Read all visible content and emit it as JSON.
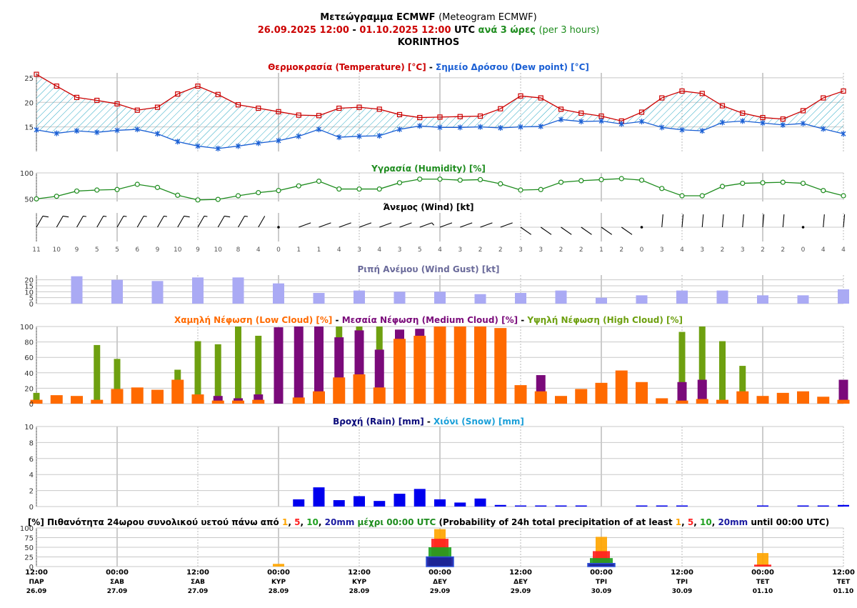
{
  "header": {
    "title_bold": "Μετεώγραμμα ECMWF",
    "title_plain": "(Meteogram ECMWF)",
    "period_start": "26.09.2025 12:00",
    "period_dash": "-",
    "period_end": "01.10.2025 12:00",
    "period_utc": "UTC",
    "period_step": "ανά 3 ώρες",
    "period_step_en": "(per 3 hours)",
    "location": "KORINTHOS"
  },
  "colors": {
    "temperature": "#cc0000",
    "dewpoint": "#1a5fd4",
    "humidity": "#1e8c1e",
    "gust": "#aaaaf4",
    "low_cloud": "#ff6a00",
    "medium_cloud": "#7a0a7a",
    "high_cloud": "#6ea010",
    "rain": "#0000ee",
    "snow": "#1a9fd8",
    "prob_1": "#ffa500",
    "prob_5": "#ff2020",
    "prob_10": "#20a020",
    "prob_20": "#1a1aa0"
  },
  "x_axis": {
    "times": [
      "12:00",
      "00:00",
      "12:00",
      "00:00",
      "12:00",
      "00:00",
      "12:00",
      "00:00",
      "12:00",
      "00:00",
      "12:00"
    ],
    "days": [
      "ΠΑΡ",
      "ΣΑΒ",
      "ΣΑΒ",
      "ΚΥΡ",
      "ΚΥΡ",
      "ΔΕΥ",
      "ΔΕΥ",
      "ΤΡΙ",
      "ΤΡΙ",
      "ΤΕΤ",
      "ΤΕΤ"
    ],
    "dates": [
      "26.09",
      "27.09",
      "27.09",
      "28.09",
      "28.09",
      "29.09",
      "29.09",
      "30.09",
      "30.09",
      "01.10",
      "01.10"
    ]
  },
  "chart_data": [
    {
      "type": "line",
      "title_parts": [
        "Θερμοκρασία (Temperature) [°C]",
        " - ",
        "Σημείο Δρόσου (Dew point) [°C]"
      ],
      "x_steps": 41,
      "ylim": [
        10,
        26
      ],
      "yticks": [
        15,
        20,
        25
      ],
      "series": [
        {
          "name": "Θερμοκρασία (Temperature) [°C]",
          "values": [
            25.7,
            23.3,
            21.0,
            20.4,
            19.7,
            18.4,
            19.0,
            21.7,
            23.3,
            21.6,
            19.5,
            18.8,
            18.1,
            17.4,
            17.3,
            18.8,
            19.0,
            18.6,
            17.5,
            16.9,
            17.0,
            17.1,
            17.2,
            18.7,
            21.3,
            20.9,
            18.6,
            17.8,
            17.2,
            16.2,
            18.0,
            20.9,
            22.3,
            21.8,
            19.3,
            17.8,
            16.9,
            16.6,
            18.3,
            20.9,
            22.3
          ]
        },
        {
          "name": "Σημείο Δρόσου (Dew point) [°C]",
          "values": [
            14.4,
            13.7,
            14.2,
            13.9,
            14.3,
            14.5,
            13.6,
            12.0,
            11.1,
            10.6,
            11.1,
            11.7,
            12.2,
            13.1,
            14.5,
            12.9,
            13.1,
            13.2,
            14.5,
            15.2,
            14.9,
            14.9,
            15.0,
            14.8,
            15.0,
            15.1,
            16.5,
            16.1,
            16.2,
            15.6,
            16.1,
            14.9,
            14.4,
            14.2,
            15.9,
            16.2,
            15.8,
            15.4,
            15.7,
            14.6,
            13.6
          ]
        }
      ]
    },
    {
      "type": "line",
      "title": "Υγρασία (Humidity) [%]",
      "ylim": [
        45,
        100
      ],
      "yticks": [
        50,
        100
      ],
      "series": [
        {
          "name": "Υγρασία (Humidity) [%]",
          "values": [
            50,
            55,
            65,
            67,
            68,
            78,
            72,
            57,
            48,
            49,
            56,
            62,
            66,
            75,
            84,
            69,
            69,
            69,
            81,
            88,
            88,
            86,
            87,
            79,
            67,
            68,
            82,
            85,
            87,
            89,
            86,
            70,
            56,
            56,
            74,
            80,
            81,
            82,
            80,
            66,
            56
          ]
        }
      ]
    },
    {
      "type": "wind",
      "title": "Άνεμος (Wind) [kt]",
      "speeds": [
        11,
        10,
        9,
        5,
        5,
        6,
        9,
        10,
        9,
        10,
        8,
        4,
        0,
        1,
        1,
        4,
        3,
        4,
        3,
        5,
        4,
        3,
        2,
        2,
        3,
        3,
        2,
        2,
        1,
        2,
        0,
        3,
        4,
        3,
        2,
        3,
        2,
        2,
        0,
        4,
        4
      ]
    },
    {
      "type": "bar",
      "title": "Ριπή Ανέμου (Wind Gust) [kt]",
      "ylim": [
        0,
        24
      ],
      "yticks": [
        0,
        5,
        10,
        15,
        20
      ],
      "bar_steps": [
        2,
        4,
        6,
        8,
        10,
        12,
        14,
        16,
        18,
        20,
        22,
        24,
        26,
        28,
        30,
        32,
        34,
        36,
        38,
        40
      ],
      "values": [
        23,
        20,
        19,
        22,
        22,
        17,
        9,
        11,
        10,
        10,
        8,
        9,
        11,
        5,
        7,
        11,
        11,
        7,
        7,
        12
      ]
    },
    {
      "type": "bar",
      "title_parts": [
        "Χαμηλή Νέφωση (Low Cloud) [%]",
        " - ",
        "Μεσαία Νέφωση (Medium Cloud) [%]",
        " - ",
        "Υψηλή Νέφωση (High Cloud) [%]"
      ],
      "ylim": [
        0,
        100
      ],
      "yticks": [
        0,
        20,
        40,
        60,
        80,
        100
      ],
      "series": [
        {
          "name": "Υψηλή Νέφωση (High Cloud) [%]",
          "values": [
            14,
            0,
            0,
            76,
            58,
            0,
            0,
            44,
            81,
            77,
            100,
            88,
            0,
            0,
            0,
            100,
            100,
            100,
            0,
            0,
            0,
            0,
            0,
            0,
            0,
            0,
            0,
            0,
            0,
            0,
            0,
            0,
            93,
            100,
            81,
            49,
            0,
            0,
            0,
            0,
            0
          ]
        },
        {
          "name": "Μεσαία Νέφωση (Medium Cloud) [%]",
          "values": [
            0,
            0,
            0,
            0,
            0,
            0,
            0,
            0,
            0,
            10,
            7,
            12,
            99,
            100,
            100,
            86,
            95,
            70,
            96,
            97,
            0,
            0,
            0,
            0,
            0,
            37,
            0,
            0,
            0,
            0,
            0,
            0,
            28,
            31,
            0,
            0,
            0,
            0,
            0,
            0,
            31
          ]
        },
        {
          "name": "Χαμηλή Νέφωση (Low Cloud) [%]",
          "values": [
            5,
            11,
            10,
            5,
            19,
            21,
            18,
            31,
            12,
            4,
            4,
            5,
            0,
            8,
            16,
            34,
            38,
            21,
            84,
            88,
            100,
            100,
            100,
            98,
            24,
            16,
            10,
            19,
            27,
            43,
            28,
            7,
            4,
            6,
            5,
            16,
            10,
            14,
            16,
            9,
            5
          ]
        }
      ]
    },
    {
      "type": "bar",
      "title_parts": [
        "Βροχή (Rain) [mm]",
        " - ",
        "Χιόνι (Snow) [mm]"
      ],
      "ylim": [
        0,
        10
      ],
      "yticks": [
        0,
        2,
        4,
        6,
        8,
        10
      ],
      "series": [
        {
          "name": "Βροχή (Rain) [mm]",
          "values": [
            0,
            0,
            0,
            0,
            0,
            0,
            0,
            0,
            0,
            0,
            0,
            0,
            0,
            0.9,
            2.4,
            0.8,
            1.3,
            0.7,
            1.6,
            2.2,
            0.9,
            0.5,
            1.0,
            0.2,
            0.1,
            0.1,
            0.1,
            0.1,
            0,
            0,
            0.1,
            0.1,
            0.1,
            0,
            0,
            0,
            0.1,
            0,
            0.1,
            0.1,
            0.2
          ]
        }
      ]
    },
    {
      "type": "bar",
      "title_parts": [
        "[%] Πιθανότητα 24ωρου συνολικού υετού πάνω από ",
        "1",
        ", ",
        "5",
        ", ",
        "10",
        ", ",
        "20mm",
        " μέχρι 00:00 UTC",
        " (Probability of 24h total precipitation of at least ",
        "1",
        ", ",
        "5",
        ", ",
        "10",
        ", ",
        "20mm",
        " until 00:00 UTC)"
      ],
      "ylim": [
        0,
        100
      ],
      "yticks": [
        0,
        25,
        50,
        75,
        100
      ],
      "categories": [
        "28.09 00:00",
        "29.09 00:00",
        "30.09 00:00",
        "01.10 00:00"
      ],
      "series": [
        {
          "name": "1",
          "values": [
            7,
            97,
            77,
            35
          ]
        },
        {
          "name": "5",
          "values": [
            0,
            72,
            40,
            5
          ]
        },
        {
          "name": "10",
          "values": [
            0,
            50,
            22,
            0
          ]
        },
        {
          "name": "20mm",
          "values": [
            0,
            25,
            8,
            0
          ]
        }
      ]
    }
  ]
}
